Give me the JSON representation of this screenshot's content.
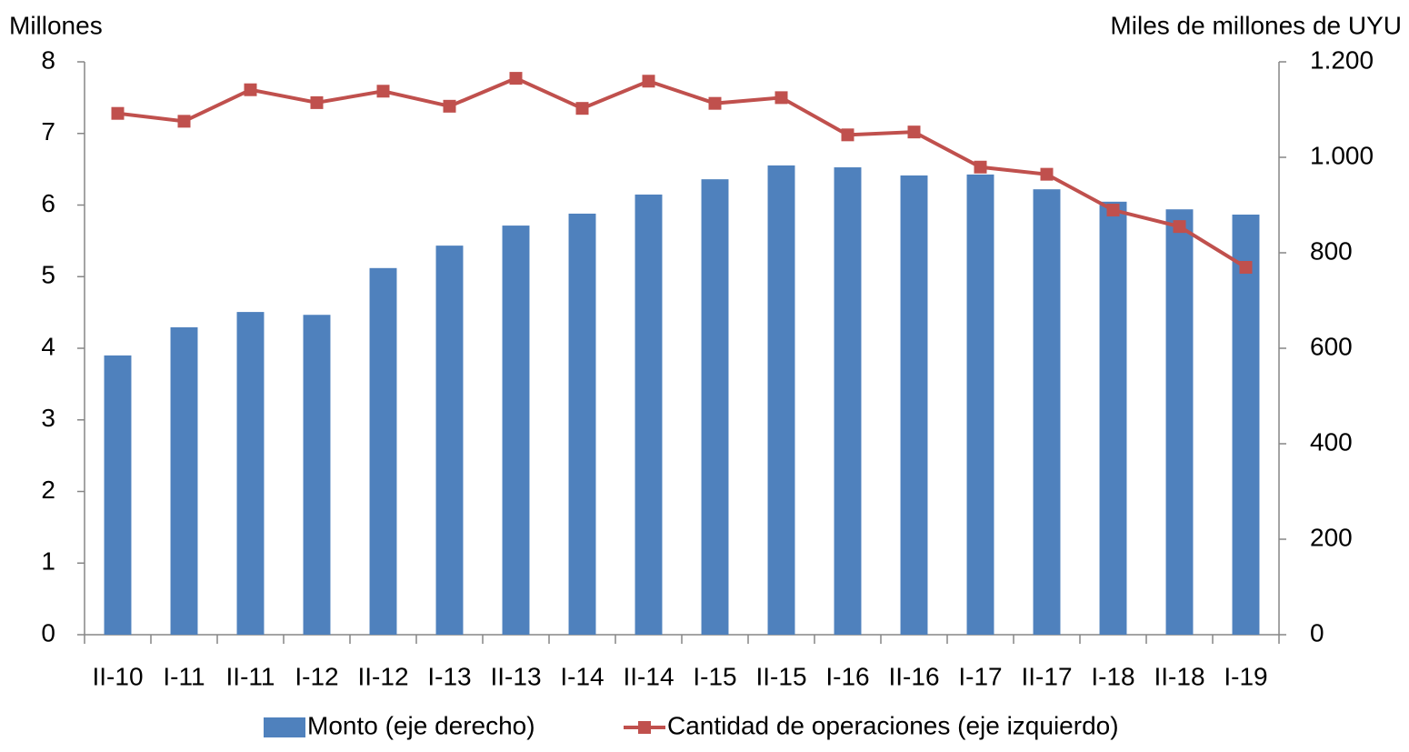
{
  "chart_data": {
    "type": "combo",
    "y_label": "Millones",
    "y2_label": "Miles de millones de UYU",
    "categories": [
      "II-10",
      "I-11",
      "II-11",
      "I-12",
      "II-12",
      "I-13",
      "II-13",
      "I-14",
      "II-14",
      "I-15",
      "II-15",
      "I-16",
      "II-16",
      "I-17",
      "II-17",
      "I-18",
      "II-18",
      "I-19"
    ],
    "series": [
      {
        "name": "Monto (eje derecho)",
        "type": "bar",
        "axis": "y2",
        "color": "#4f81bd",
        "values": [
          585,
          644,
          676,
          670,
          768,
          815,
          857,
          882,
          922,
          954,
          983,
          979,
          962,
          964,
          933,
          907,
          891,
          880
        ]
      },
      {
        "name": "Cantidad de operaciones (eje izquierdo)",
        "type": "line",
        "axis": "y",
        "color": "#c0504d",
        "values": [
          7.28,
          7.17,
          7.61,
          7.43,
          7.59,
          7.38,
          7.77,
          7.35,
          7.73,
          7.42,
          7.5,
          6.98,
          7.02,
          6.53,
          6.43,
          5.93,
          5.7,
          5.13
        ]
      }
    ],
    "ylim": [
      0,
      8
    ],
    "yticks": [
      0,
      1,
      2,
      3,
      4,
      5,
      6,
      7,
      8
    ],
    "y2lim": [
      0,
      1200
    ],
    "y2ticks": [
      0,
      200,
      400,
      600,
      800,
      {
        "value": 1000,
        "label": "1.000"
      },
      {
        "value": 1200,
        "label": "1.200"
      }
    ],
    "legend": "bottom"
  }
}
